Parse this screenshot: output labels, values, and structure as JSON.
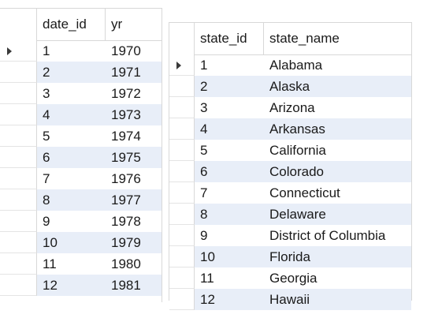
{
  "dates_grid": {
    "columns": [
      "date_id",
      "yr"
    ],
    "rows": [
      [
        "1",
        "1970"
      ],
      [
        "2",
        "1971"
      ],
      [
        "3",
        "1972"
      ],
      [
        "4",
        "1973"
      ],
      [
        "5",
        "1974"
      ],
      [
        "6",
        "1975"
      ],
      [
        "7",
        "1976"
      ],
      [
        "8",
        "1977"
      ],
      [
        "9",
        "1978"
      ],
      [
        "10",
        "1979"
      ],
      [
        "11",
        "1980"
      ],
      [
        "12",
        "1981"
      ]
    ],
    "current_row_indicator": "arrow-right-icon"
  },
  "states_grid": {
    "columns": [
      "state_id",
      "state_name"
    ],
    "rows": [
      [
        "1",
        "Alabama"
      ],
      [
        "2",
        "Alaska"
      ],
      [
        "3",
        "Arizona"
      ],
      [
        "4",
        "Arkansas"
      ],
      [
        "5",
        "California"
      ],
      [
        "6",
        "Colorado"
      ],
      [
        "7",
        "Connecticut"
      ],
      [
        "8",
        "Delaware"
      ],
      [
        "9",
        "District of Columbia"
      ],
      [
        "10",
        "Florida"
      ],
      [
        "11",
        "Georgia"
      ],
      [
        "12",
        "Hawaii"
      ]
    ],
    "current_row_indicator": "arrow-right-icon"
  },
  "colors": {
    "alt_row": "#e8eef8",
    "grid_line": "#d8d8d8"
  }
}
